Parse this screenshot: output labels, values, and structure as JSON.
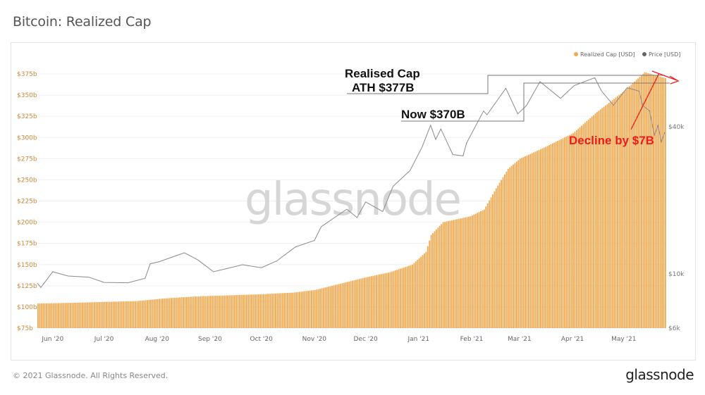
{
  "header": {
    "title": "Bitcoin: Realized Cap"
  },
  "footer": {
    "copyright": "© 2021 Glassnode. All Rights Reserved.",
    "logo": "glassnode"
  },
  "watermark": "glassnode",
  "colors": {
    "realized_cap": "#f2a94f",
    "price": "#8a8a8a",
    "annotation": "#ee1c1c",
    "axis_left": "#c8873a"
  },
  "chart_data": {
    "type": "bar",
    "title": "Bitcoin: Realized Cap",
    "legend": {
      "placement": "top-right",
      "entries": [
        "Realized Cap [USD]",
        "Price [USD]"
      ]
    },
    "x_ticks": [
      "Jun '20",
      "Jul '20",
      "Aug '20",
      "Sep '20",
      "Oct '20",
      "Nov '20",
      "Dec '20",
      "Jan '21",
      "Feb '21",
      "Mar '21",
      "Apr '21",
      "May '21"
    ],
    "x_tick_dates": [
      "2020-06-01",
      "2020-07-01",
      "2020-08-01",
      "2020-09-01",
      "2020-10-01",
      "2020-11-01",
      "2020-12-01",
      "2021-01-01",
      "2021-02-01",
      "2021-03-01",
      "2021-04-01",
      "2021-05-01"
    ],
    "xlim": [
      "2020-05-23",
      "2021-05-25"
    ],
    "y_left": {
      "ticks": [
        "$75b",
        "$100b",
        "$125b",
        "$150b",
        "$175b",
        "$200b",
        "$225b",
        "$250b",
        "$275b",
        "$300b",
        "$325b",
        "$350b",
        "$375b"
      ],
      "range": [
        75,
        375
      ],
      "unit": "billion USD"
    },
    "y_right": {
      "ticks": [
        "$6k",
        "$10k",
        "$40k"
      ],
      "tick_values": [
        6000,
        10000,
        40000
      ],
      "scale": "log",
      "range": [
        6000,
        70000
      ]
    },
    "grid": true,
    "series": [
      {
        "name": "Realized Cap [USD]",
        "type": "bar",
        "points": [
          [
            "2020-05-23",
            104
          ],
          [
            "2020-06-15",
            105
          ],
          [
            "2020-07-20",
            107
          ],
          [
            "2020-08-05",
            110
          ],
          [
            "2020-08-20",
            112
          ],
          [
            "2020-09-01",
            113
          ],
          [
            "2020-10-01",
            115
          ],
          [
            "2020-10-20",
            117
          ],
          [
            "2020-11-01",
            120
          ],
          [
            "2020-11-15",
            127
          ],
          [
            "2020-12-01",
            135
          ],
          [
            "2020-12-15",
            141
          ],
          [
            "2020-12-28",
            150
          ],
          [
            "2021-01-05",
            165
          ],
          [
            "2021-01-08",
            185
          ],
          [
            "2021-01-15",
            200
          ],
          [
            "2021-01-31",
            207
          ],
          [
            "2021-02-08",
            215
          ],
          [
            "2021-02-15",
            240
          ],
          [
            "2021-02-22",
            263
          ],
          [
            "2021-03-01",
            275
          ],
          [
            "2021-03-15",
            288
          ],
          [
            "2021-04-01",
            305
          ],
          [
            "2021-04-15",
            330
          ],
          [
            "2021-05-01",
            355
          ],
          [
            "2021-05-13",
            377
          ],
          [
            "2021-05-20",
            373
          ],
          [
            "2021-05-25",
            370
          ]
        ]
      },
      {
        "name": "Price [USD]",
        "type": "line",
        "points": [
          [
            "2020-05-23",
            9170
          ],
          [
            "2020-05-25",
            8800
          ],
          [
            "2020-06-01",
            10200
          ],
          [
            "2020-06-10",
            9800
          ],
          [
            "2020-06-22",
            9700
          ],
          [
            "2020-07-01",
            9230
          ],
          [
            "2020-07-15",
            9200
          ],
          [
            "2020-07-25",
            9600
          ],
          [
            "2020-07-28",
            11000
          ],
          [
            "2020-08-02",
            11200
          ],
          [
            "2020-08-17",
            12200
          ],
          [
            "2020-08-25",
            11400
          ],
          [
            "2020-09-03",
            10200
          ],
          [
            "2020-09-20",
            10900
          ],
          [
            "2020-10-01",
            10600
          ],
          [
            "2020-10-10",
            11300
          ],
          [
            "2020-10-21",
            12900
          ],
          [
            "2020-11-01",
            13700
          ],
          [
            "2020-11-05",
            15600
          ],
          [
            "2020-11-20",
            18400
          ],
          [
            "2020-11-26",
            17000
          ],
          [
            "2020-12-01",
            19700
          ],
          [
            "2020-12-11",
            18000
          ],
          [
            "2020-12-17",
            22800
          ],
          [
            "2020-12-27",
            26500
          ],
          [
            "2021-01-03",
            33000
          ],
          [
            "2021-01-08",
            40600
          ],
          [
            "2021-01-11",
            35500
          ],
          [
            "2021-01-14",
            39200
          ],
          [
            "2021-01-21",
            30800
          ],
          [
            "2021-01-27",
            30400
          ],
          [
            "2021-01-29",
            34300
          ],
          [
            "2021-02-08",
            46400
          ],
          [
            "2021-02-10",
            44800
          ],
          [
            "2021-02-21",
            57500
          ],
          [
            "2021-02-28",
            45200
          ],
          [
            "2021-03-05",
            48800
          ],
          [
            "2021-03-13",
            61200
          ],
          [
            "2021-03-25",
            52300
          ],
          [
            "2021-04-02",
            59000
          ],
          [
            "2021-04-14",
            63500
          ],
          [
            "2021-04-18",
            56000
          ],
          [
            "2021-04-25",
            49000
          ],
          [
            "2021-05-03",
            57800
          ],
          [
            "2021-05-10",
            56000
          ],
          [
            "2021-05-12",
            49000
          ],
          [
            "2021-05-16",
            46500
          ],
          [
            "2021-05-19",
            37000
          ],
          [
            "2021-05-21",
            40500
          ],
          [
            "2021-05-23",
            34700
          ],
          [
            "2021-05-25",
            38000
          ]
        ]
      }
    ],
    "annotations": {
      "ath_line1": "Realised Cap",
      "ath_line2": "ATH $377B",
      "now": "Now $370B",
      "decline": "Decline by $7B",
      "ath_value": 377,
      "now_value": 370
    }
  }
}
